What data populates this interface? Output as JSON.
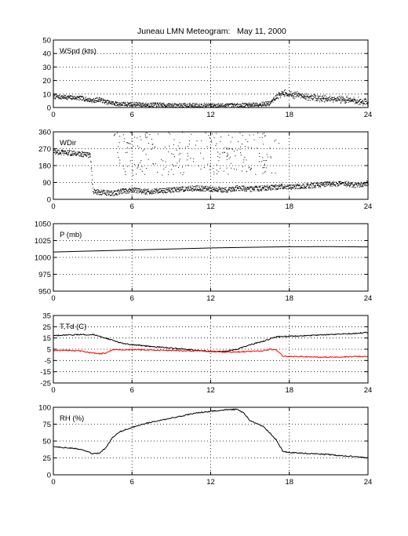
{
  "title": "Juneau LMN Meteogram:",
  "date": "May 11, 2000",
  "chart_data": [
    {
      "type": "scatter",
      "panel_label": "WSpd (kts)",
      "xlim": [
        0,
        24
      ],
      "ylim": [
        0,
        50
      ],
      "x_ticks": [
        0,
        6,
        12,
        18,
        24
      ],
      "y_ticks": [
        0,
        10,
        20,
        30,
        40,
        50
      ],
      "grid": true,
      "series": [
        {
          "color": "#000000",
          "x": [
            0,
            1,
            2,
            2.5,
            3,
            3.5,
            4,
            5,
            6,
            7,
            8,
            9,
            10,
            11,
            12,
            13,
            14,
            15,
            16,
            16.5,
            17,
            17.5,
            18,
            19,
            20,
            21,
            22,
            23,
            24
          ],
          "y": [
            8,
            7.5,
            7,
            6,
            5,
            6,
            4,
            2.5,
            2.5,
            2,
            2,
            1.5,
            1.5,
            1.5,
            1.5,
            1.5,
            1.5,
            2,
            2.5,
            3,
            8,
            11,
            10,
            8.5,
            7,
            6.5,
            6,
            5,
            4
          ]
        }
      ]
    },
    {
      "type": "scatter",
      "panel_label": "WDir",
      "xlim": [
        0,
        24
      ],
      "ylim": [
        0,
        360
      ],
      "x_ticks": [
        0,
        6,
        12,
        18,
        24
      ],
      "y_ticks": [
        0,
        90,
        180,
        270,
        360
      ],
      "grid": true,
      "series": [
        {
          "color": "#000000",
          "x": [
            0,
            0.5,
            1,
            1.5,
            2,
            2.5,
            2.8,
            3,
            3.5,
            4,
            4.5,
            5,
            5.5,
            6,
            7,
            8,
            9,
            10,
            11,
            12,
            13,
            14,
            15,
            16,
            17,
            17.5,
            18,
            19,
            20,
            21,
            22,
            23,
            24
          ],
          "y": [
            255,
            250,
            248,
            245,
            242,
            238,
            235,
            40,
            38,
            35,
            30,
            40,
            45,
            50,
            40,
            45,
            50,
            55,
            60,
            55,
            50,
            60,
            55,
            60,
            65,
            70,
            65,
            70,
            75,
            80,
            85,
            75,
            85
          ]
        },
        {
          "color": "#000000",
          "x": [
            4.6,
            5,
            5.5,
            6,
            6.5,
            7,
            7.5,
            8,
            9,
            9.5,
            10,
            10.5,
            11,
            11.5,
            12,
            12.5,
            13,
            13.5,
            14,
            14.5,
            15,
            15.5,
            16,
            16.5,
            17
          ],
          "y": [
            310,
            350,
            330,
            280,
            360,
            300,
            340,
            250,
            320,
            200,
            300,
            350,
            280,
            330,
            260,
            340,
            300,
            260,
            320,
            280,
            350,
            250,
            330,
            300,
            270
          ]
        }
      ]
    },
    {
      "type": "line",
      "panel_label": "P (mb)",
      "xlim": [
        0,
        24
      ],
      "ylim": [
        950,
        1050
      ],
      "x_ticks": [
        0,
        6,
        12,
        18,
        24
      ],
      "y_ticks": [
        950,
        975,
        1000,
        1025,
        1050
      ],
      "grid": true,
      "series": [
        {
          "color": "#000000",
          "x": [
            0,
            3,
            6,
            9,
            12,
            15,
            18,
            21,
            24
          ],
          "y": [
            1008,
            1009.5,
            1011,
            1012.5,
            1014,
            1015,
            1015.8,
            1016,
            1015.5
          ]
        }
      ]
    },
    {
      "type": "line",
      "panel_label": "T,Td (C)",
      "xlim": [
        0,
        24
      ],
      "ylim": [
        -25,
        35
      ],
      "x_ticks": [
        0,
        6,
        12,
        18,
        24
      ],
      "y_ticks": [
        -25,
        -15,
        -5,
        5,
        15,
        25,
        35
      ],
      "grid": true,
      "series": [
        {
          "color": "#000000",
          "x": [
            0,
            1,
            2,
            3,
            4,
            5,
            6,
            7,
            8,
            9,
            10,
            11,
            12,
            13,
            14,
            15,
            16,
            17,
            18,
            19,
            20,
            21,
            22,
            23,
            24
          ],
          "y": [
            17,
            17.5,
            18,
            18,
            15,
            11,
            9,
            8,
            7,
            6,
            5,
            4,
            3,
            3,
            5,
            9,
            12,
            16,
            16.5,
            17,
            17.5,
            18,
            18.5,
            19,
            20
          ]
        },
        {
          "color": "#ff0000",
          "x": [
            0,
            1,
            2,
            2.5,
            3,
            3.5,
            4,
            4.5,
            5,
            6,
            7,
            8,
            9,
            10,
            11,
            12,
            13,
            14,
            15,
            16,
            16.5,
            17,
            17.5,
            18,
            19,
            20,
            21,
            22,
            23,
            24
          ],
          "y": [
            4,
            4,
            3.5,
            2.5,
            1.5,
            1,
            1.5,
            4.5,
            4.5,
            4.5,
            4.5,
            4,
            4,
            3.5,
            3.5,
            3,
            2.5,
            2.5,
            3,
            3.5,
            5,
            4.5,
            -1,
            -1.5,
            -1.5,
            -2,
            -2,
            -2,
            -1.5,
            -1.5
          ]
        }
      ]
    },
    {
      "type": "line",
      "panel_label": "RH (%)",
      "xlim": [
        0,
        24
      ],
      "ylim": [
        0,
        100
      ],
      "x_ticks": [
        0,
        6,
        12,
        18,
        24
      ],
      "y_ticks": [
        0,
        25,
        50,
        75,
        100
      ],
      "grid": true,
      "series": [
        {
          "color": "#000000",
          "x": [
            0,
            1,
            2,
            2.5,
            3,
            3.5,
            4,
            4.5,
            5,
            5.5,
            6,
            7,
            8,
            9,
            10,
            11,
            12,
            13,
            14,
            14.5,
            15,
            16,
            16.5,
            17,
            17.5,
            18,
            19,
            20,
            21,
            22,
            23,
            24
          ],
          "y": [
            42,
            40,
            38,
            35,
            31,
            32,
            40,
            55,
            63,
            67,
            70,
            76,
            80,
            84,
            88,
            92,
            94,
            96,
            97,
            92,
            80,
            72,
            62,
            52,
            35,
            33,
            32,
            31,
            30,
            28,
            27,
            25
          ]
        }
      ]
    }
  ]
}
